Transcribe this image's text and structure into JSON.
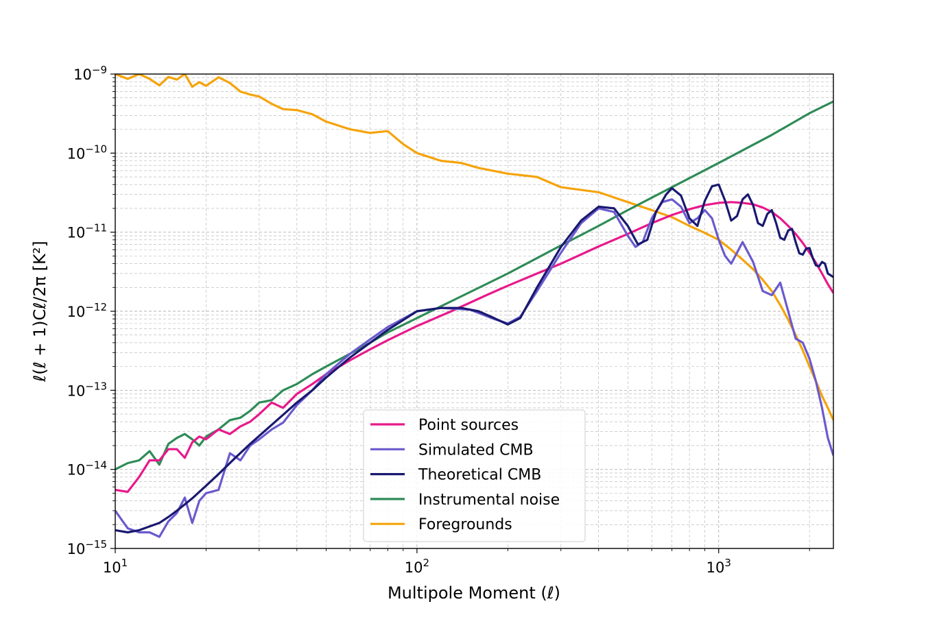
{
  "chart_data": {
    "type": "line",
    "xlabel": "Multipole Moment (ℓ)",
    "ylabel": "ℓ(ℓ + 1)Cℓ/2π [K²]",
    "xscale": "log",
    "yscale": "log",
    "xlim": [
      10,
      2400
    ],
    "ylim": [
      1e-15,
      1e-09
    ],
    "x_ticks": [
      {
        "value": 10,
        "base": "10",
        "exp": "1"
      },
      {
        "value": 100,
        "base": "10",
        "exp": "2"
      },
      {
        "value": 1000,
        "base": "10",
        "exp": "3"
      }
    ],
    "y_ticks": [
      {
        "value": 1e-09,
        "base": "10",
        "exp": "−9"
      },
      {
        "value": 1e-10,
        "base": "10",
        "exp": "−10"
      },
      {
        "value": 1e-11,
        "base": "10",
        "exp": "−11"
      },
      {
        "value": 1e-12,
        "base": "10",
        "exp": "−12"
      },
      {
        "value": 1e-13,
        "base": "10",
        "exp": "−13"
      },
      {
        "value": 1e-14,
        "base": "10",
        "exp": "−14"
      },
      {
        "value": 1e-15,
        "base": "10",
        "exp": "−15"
      }
    ],
    "grid": "major and minor, dashed",
    "legend_position": "lower-center",
    "series": [
      {
        "name": "Point sources",
        "color": "#e8198b",
        "x": [
          10,
          11,
          12,
          13,
          14,
          15,
          16,
          17,
          18,
          19,
          20,
          22,
          24,
          26,
          28,
          30,
          33,
          36,
          40,
          45,
          50,
          60,
          70,
          80,
          100,
          130,
          170,
          200,
          250,
          300,
          400,
          500,
          600,
          700,
          800,
          900,
          1000,
          1100,
          1200,
          1300,
          1400,
          1500,
          1600,
          1700,
          1800,
          1900,
          2000,
          2100,
          2200,
          2300,
          2400
        ],
        "y": [
          5.5e-15,
          5.2e-15,
          8e-15,
          1.3e-14,
          1.3e-14,
          1.8e-14,
          1.8e-14,
          1.4e-14,
          2.2e-14,
          2.6e-14,
          2.4e-14,
          3.2e-14,
          2.8e-14,
          3.5e-14,
          4e-14,
          5e-14,
          7e-14,
          6e-14,
          9e-14,
          1.2e-13,
          1.6e-13,
          2.4e-13,
          3.3e-13,
          4.3e-13,
          6.5e-13,
          1e-12,
          1.6e-12,
          2.1e-12,
          3e-12,
          4e-12,
          6.6e-12,
          9.5e-12,
          1.3e-11,
          1.65e-11,
          1.95e-11,
          2.2e-11,
          2.35e-11,
          2.4e-11,
          2.35e-11,
          2.25e-11,
          2.05e-11,
          1.8e-11,
          1.5e-11,
          1.2e-11,
          9.5e-12,
          7.3e-12,
          5.5e-12,
          4.1e-12,
          3e-12,
          2.2e-12,
          1.7e-12
        ]
      },
      {
        "name": "Simulated CMB",
        "color": "#6a5acd",
        "x": [
          10,
          11,
          12,
          13,
          14,
          15,
          16,
          17,
          18,
          19,
          20,
          22,
          24,
          26,
          28,
          30,
          33,
          36,
          40,
          45,
          50,
          60,
          70,
          80,
          100,
          120,
          150,
          180,
          200,
          220,
          250,
          300,
          350,
          400,
          450,
          500,
          530,
          560,
          600,
          650,
          700,
          750,
          800,
          850,
          900,
          950,
          1000,
          1050,
          1100,
          1200,
          1300,
          1400,
          1500,
          1600,
          1700,
          1800,
          1900,
          2000,
          2100,
          2200,
          2300,
          2400
        ],
        "y": [
          3e-15,
          1.8e-15,
          1.6e-15,
          1.6e-15,
          1.4e-15,
          2.2e-15,
          2.8e-15,
          4.4e-15,
          2.1e-15,
          4e-15,
          5e-15,
          5.5e-15,
          1.6e-14,
          1.3e-14,
          2e-14,
          2.4e-14,
          3.2e-14,
          3.9e-14,
          6.5e-14,
          1e-13,
          1.6e-13,
          2.9e-13,
          4.4e-13,
          6.3e-13,
          1e-12,
          1.1e-12,
          1.05e-12,
          8e-13,
          7e-13,
          8.5e-13,
          1.8e-12,
          5.5e-12,
          1.3e-11,
          2e-11,
          1.8e-11,
          9e-12,
          6.5e-12,
          7.5e-12,
          1.5e-11,
          2.4e-11,
          2.6e-11,
          2.1e-11,
          1.3e-11,
          1.5e-11,
          1.9e-11,
          1.5e-11,
          8e-12,
          5e-12,
          4e-12,
          7.5e-12,
          4.2e-12,
          1.8e-12,
          1.6e-12,
          2.3e-12,
          1e-12,
          4.5e-13,
          4e-13,
          2.5e-13,
          1.3e-13,
          6e-14,
          2.5e-14,
          1.5e-14
        ]
      },
      {
        "name": "Theoretical CMB",
        "color": "#191970",
        "x": [
          10,
          11,
          12,
          13,
          14,
          15,
          16,
          17,
          18,
          20,
          22,
          25,
          28,
          32,
          36,
          40,
          45,
          50,
          60,
          70,
          80,
          100,
          120,
          140,
          160,
          180,
          200,
          220,
          250,
          300,
          350,
          400,
          450,
          500,
          540,
          580,
          620,
          670,
          700,
          750,
          800,
          850,
          900,
          950,
          1000,
          1050,
          1100,
          1150,
          1200,
          1250,
          1300,
          1350,
          1400,
          1450,
          1500,
          1550,
          1600,
          1650,
          1700,
          1750,
          1800,
          1850,
          1900,
          1950,
          2000,
          2050,
          2100,
          2150,
          2200,
          2250,
          2300,
          2400
        ],
        "y": [
          1.7e-15,
          1.6e-15,
          1.7e-15,
          1.9e-15,
          2.1e-15,
          2.5e-15,
          3e-15,
          3.6e-15,
          4.3e-15,
          6.2e-15,
          8.7e-15,
          1.4e-14,
          2.1e-14,
          3.3e-14,
          4.9e-14,
          7e-14,
          1e-13,
          1.45e-13,
          2.6e-13,
          4e-13,
          5.8e-13,
          1e-12,
          1.1e-12,
          1.1e-12,
          1e-12,
          8.2e-13,
          6.8e-13,
          8.2e-13,
          2e-12,
          6.5e-12,
          1.4e-11,
          2.1e-11,
          2e-11,
          1.2e-11,
          7e-12,
          8e-12,
          1.8e-11,
          3e-11,
          3.6e-11,
          2.9e-11,
          1.5e-11,
          1.2e-11,
          2.5e-11,
          3.8e-11,
          4e-11,
          2.5e-11,
          1.4e-11,
          1.6e-11,
          2.6e-11,
          3e-11,
          2.2e-11,
          1.3e-11,
          1.2e-11,
          1.7e-11,
          1.9e-11,
          1.3e-11,
          8.5e-12,
          8e-12,
          1.05e-11,
          1.1e-11,
          7.5e-12,
          5.4e-12,
          5.2e-12,
          6.2e-12,
          6.3e-12,
          4.7e-12,
          3.8e-12,
          3.7e-12,
          4.2e-12,
          4e-12,
          3e-12,
          2.7e-12
        ]
      },
      {
        "name": "Instrumental noise",
        "color": "#2e8b57",
        "x": [
          10,
          11,
          12,
          13,
          14,
          15,
          16,
          17,
          18,
          19,
          20,
          22,
          24,
          26,
          28,
          30,
          33,
          36,
          40,
          45,
          50,
          60,
          70,
          80,
          100,
          150,
          200,
          300,
          400,
          500,
          700,
          1000,
          1500,
          2000,
          2400
        ],
        "y": [
          1e-14,
          1.2e-14,
          1.3e-14,
          1.7e-14,
          1.15e-14,
          2.1e-14,
          2.5e-14,
          2.8e-14,
          2.4e-14,
          2e-14,
          2.6e-14,
          3.2e-14,
          4.2e-14,
          4.5e-14,
          5.5e-14,
          7e-14,
          7.5e-14,
          1e-13,
          1.2e-13,
          1.6e-13,
          2e-13,
          2.9e-13,
          4e-13,
          5.4e-13,
          8.2e-13,
          1.75e-12,
          3e-12,
          6.8e-12,
          1.2e-11,
          1.9e-11,
          3.7e-11,
          7.5e-11,
          1.7e-10,
          3.2e-10,
          4.5e-10
        ]
      },
      {
        "name": "Foregrounds",
        "color": "#f5a30a",
        "x": [
          10,
          11,
          12,
          13,
          14,
          15,
          16,
          17,
          18,
          19,
          20,
          22,
          24,
          26,
          28,
          30,
          33,
          36,
          40,
          45,
          50,
          60,
          70,
          80,
          90,
          100,
          120,
          140,
          160,
          200,
          250,
          300,
          400,
          500,
          600,
          700,
          800,
          900,
          1000,
          1100,
          1200,
          1300,
          1400,
          1500,
          1600,
          1700,
          1800,
          1900,
          2000,
          2100,
          2200,
          2300,
          2400
        ],
        "y": [
          1e-09,
          8.7e-10,
          1e-09,
          8.7e-10,
          7.2e-10,
          9.2e-10,
          8.5e-10,
          1e-09,
          6.9e-10,
          7.9e-10,
          7.1e-10,
          9.1e-10,
          7.7e-10,
          6e-10,
          5.5e-10,
          5.2e-10,
          4.2e-10,
          3.6e-10,
          3.5e-10,
          3.1e-10,
          2.5e-10,
          2e-10,
          1.8e-10,
          1.9e-10,
          1.3e-10,
          1e-10,
          8e-11,
          7.5e-11,
          6.5e-11,
          5.5e-11,
          5e-11,
          3.7e-11,
          3.2e-11,
          2.4e-11,
          1.9e-11,
          1.55e-11,
          1.2e-11,
          9.8e-12,
          8e-12,
          6e-12,
          4.5e-12,
          3.4e-12,
          2.5e-12,
          1.8e-12,
          1.2e-12,
          7.8e-13,
          5e-13,
          3.2e-13,
          2e-13,
          1.3e-13,
          8.5e-14,
          6e-14,
          4.2e-14
        ]
      }
    ]
  }
}
